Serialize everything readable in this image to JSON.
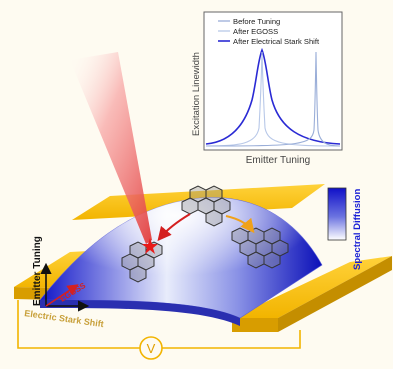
{
  "inset_plot": {
    "ylabel": "Excitation Linewidth",
    "xlabel": "Emitter Tuning",
    "legend": [
      "Before Tuning",
      "After EGOSS",
      "After Electrical Stark Shift"
    ]
  },
  "colorbar": {
    "label": "Spectral Diffusion"
  },
  "axes_labels": {
    "emitter_tuning": "Emitter Tuning",
    "egoss": "EGOSS",
    "electric_stark_shift": "Electric Stark Shift"
  },
  "voltage_symbol": "V",
  "colors": {
    "background": "#fefbf1",
    "electrode_gold": "#f2b400",
    "spectral_blue": "#1a21d6",
    "before_tuning": "#9aaed8",
    "after_egoss": "#b8c8e8",
    "after_stark": "#2a2ad4",
    "laser_red": "#e23b3b",
    "egoss_label": "#d42020",
    "stark_label": "#c8a03a"
  }
}
